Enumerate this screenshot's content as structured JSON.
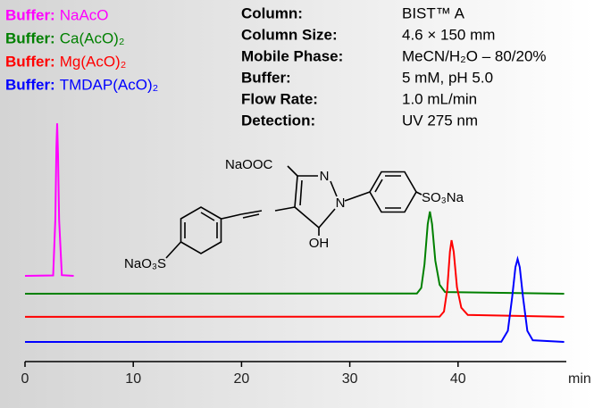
{
  "chart_data": {
    "type": "line",
    "xlabel": "min",
    "xlim": [
      0,
      50
    ],
    "xticks": [
      0,
      10,
      20,
      30,
      40
    ],
    "ylim": [
      0,
      100
    ],
    "legend_prefix": "Buffer:",
    "series": [
      {
        "name": "NaAcO",
        "color": "#ff00ff",
        "x": [
          0,
          2.6,
          2.8,
          2.9,
          2.97,
          3.05,
          3.15,
          3.4,
          4.5
        ],
        "values": [
          33.7,
          33.9,
          57,
          86.9,
          97,
          84,
          57,
          34,
          33.7
        ]
      },
      {
        "name": "Ca(AcO)₂",
        "color": "#008000",
        "x": [
          0,
          36.2,
          36.6,
          36.9,
          37.2,
          37.4,
          37.6,
          37.9,
          38.3,
          38.8,
          49.8
        ],
        "values": [
          26.3,
          26.4,
          28.7,
          38.5,
          55.2,
          60.4,
          55.2,
          40,
          30,
          27,
          26.3
        ]
      },
      {
        "name": "Mg(AcO)₂",
        "color": "#ff0000",
        "x": [
          0,
          38.3,
          38.7,
          39.0,
          39.25,
          39.4,
          39.6,
          39.9,
          40.3,
          40.9,
          49.8
        ],
        "values": [
          16.7,
          16.8,
          18.9,
          28,
          43.7,
          48.5,
          43.7,
          29,
          20.5,
          17.5,
          16.7
        ]
      },
      {
        "name": "TMDAP(AcO)₂",
        "color": "#0000ff",
        "x": [
          0,
          44.0,
          44.6,
          45.0,
          45.3,
          45.5,
          45.7,
          46.0,
          46.4,
          46.9,
          49.8
        ],
        "values": [
          6.3,
          6.4,
          10.9,
          24.9,
          37.3,
          40.7,
          37.3,
          24.9,
          10.9,
          7,
          6.3
        ]
      }
    ],
    "info": [
      [
        "Column:",
        "BIST™ A"
      ],
      [
        "Column Size:",
        "4.6 × 150 mm"
      ],
      [
        "Mobile Phase:",
        "MeCN/H₂O – 80/20%"
      ],
      [
        "Buffer:",
        "5 mM, pH 5.0"
      ],
      [
        "Flow Rate:",
        "1.0 mL/min"
      ],
      [
        "Detection:",
        "UV 275 nm"
      ]
    ],
    "annotations": [
      "NaOOC",
      "N",
      "N",
      "SO₃Na",
      "OH",
      "NaO₃S"
    ]
  }
}
